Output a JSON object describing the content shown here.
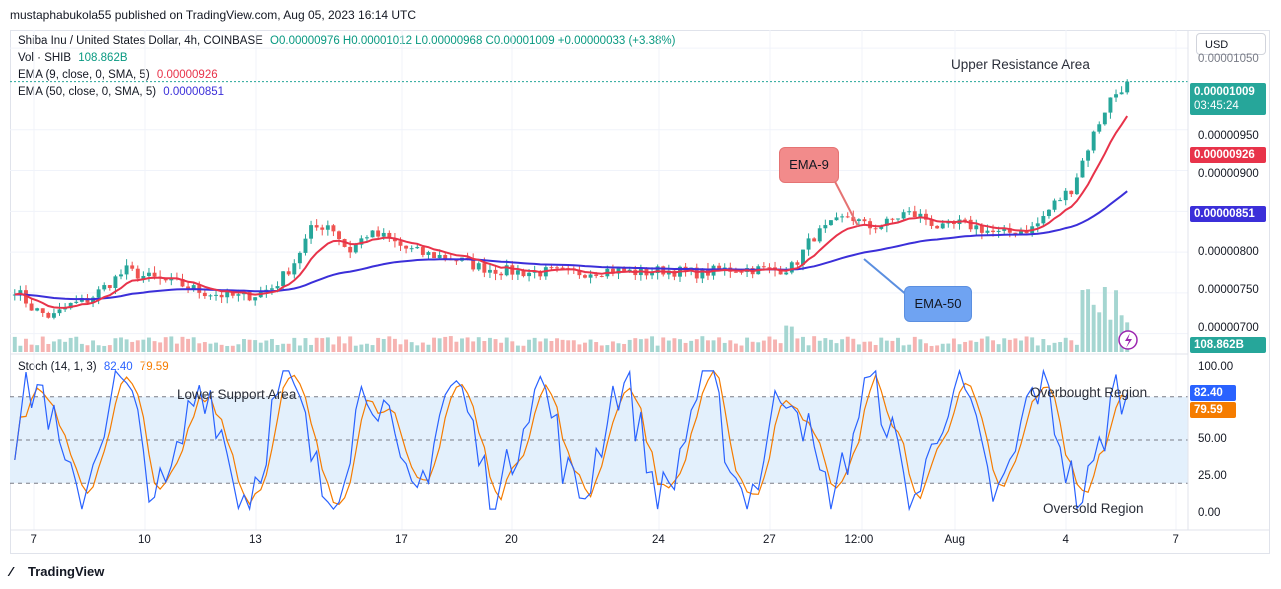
{
  "header": {
    "published_by": "mustaphabukola55 published on TradingView.com, Aug 05, 2023 16:14 UTC"
  },
  "legend": {
    "symbol_line": "Shiba Inu / United States Dollar, 4h, COINBASE",
    "ohlc": "O0.00000976 H0.00001012 L0.00000968 C0.00001009 +0.00000033 (+3.38%)",
    "vol_label": "Vol · SHIB",
    "vol_value": "108.862B",
    "ema9_label": "EMA (9, close, 0, SMA, 5)",
    "ema9_value": "0.00000926",
    "ema50_label": "EMA (50, close, 0, SMA, 5)",
    "ema50_value": "0.00000851",
    "stoch_label": "Stoch (14, 1, 3)",
    "stoch_k": "82.40",
    "stoch_d": "79.59"
  },
  "currency": "USD",
  "price_axis": {
    "labels": [
      "0.00001050",
      "0.00000950",
      "0.00000900",
      "0.00000800",
      "0.00000750",
      "0.00000700"
    ],
    "last_price": "0.00001009",
    "countdown": "03:45:24",
    "ema9_tag": "0.00000926",
    "ema50_tag": "0.00000851",
    "volume_tag": "108.862B"
  },
  "stoch_axis": {
    "labels": [
      "100.00",
      "50.00",
      "25.00",
      "0.00"
    ],
    "k_tag": "82.40",
    "d_tag": "79.59"
  },
  "time_axis": [
    "7",
    "10",
    "13",
    "17",
    "20",
    "24",
    "27",
    "12:00",
    "Aug",
    "4",
    "7"
  ],
  "annotations": {
    "upper_resistance": "Upper Resistance Area",
    "lower_support": "Lower Support Area",
    "overbought": "Overbought Region",
    "oversold": "Oversold Region",
    "ema9_callout": "EMA-9",
    "ema50_callout": "EMA-50"
  },
  "footer": {
    "brand": "TradingView"
  },
  "colors": {
    "up": "#26a69a",
    "down": "#ef5350",
    "ema9": "#e8334a",
    "ema50": "#3b2fd9",
    "stoch_k": "#2962ff",
    "stoch_d": "#f57c00",
    "last_price_tag": "#26a69a",
    "ema9_tag": "#e8334a",
    "ema50_tag": "#3b2fd9",
    "volume_tag": "#26a69a",
    "stoch_band": "#e3f0fc",
    "ema9_callout_bg": "#f28b8b",
    "ema50_callout_bg": "#6fa3f2"
  },
  "chart_data": {
    "type": "candlestick",
    "symbol": "SHIB/USD",
    "interval": "4h",
    "price_range": [
      6.8e-06,
      1.06e-05
    ],
    "last": 1.009e-05,
    "ema9_last": 9.26e-06,
    "ema50_last": 8.51e-06,
    "trend_closes": [
      7.55e-06,
      7.3e-06,
      7.2e-06,
      7.35e-06,
      7.42e-06,
      7.6e-06,
      7.78e-06,
      7.7e-06,
      7.65e-06,
      7.6e-06,
      7.52e-06,
      7.48e-06,
      7.45e-06,
      7.48e-06,
      7.58e-06,
      7.85e-06,
      8.28e-06,
      8.35e-06,
      8e-06,
      8.22e-06,
      8.18e-06,
      8.05e-06,
      7.98e-06,
      7.95e-06,
      7.9e-06,
      7.82e-06,
      7.78e-06,
      7.76e-06,
      7.75e-06,
      7.76e-06,
      7.74e-06,
      7.76e-06,
      7.78e-06,
      7.76e-06,
      7.75e-06,
      7.78e-06,
      7.76e-06,
      7.74e-06,
      7.78e-06,
      7.8e-06,
      7.79e-06,
      7.78e-06,
      7.82e-06,
      8.18e-06,
      8.32e-06,
      8.45e-06,
      8.3e-06,
      8.35e-06,
      8.48e-06,
      8.43e-06,
      8.28e-06,
      8.35e-06,
      8.3e-06,
      8.22e-06,
      8.25e-06,
      8.3e-06,
      8.58e-06,
      8.78e-06,
      9.35e-06,
      9.85e-06,
      1.009e-05
    ],
    "volume_last": "108.862B",
    "stochastic": {
      "k_last": 82.4,
      "d_last": 79.59,
      "levels": [
        20,
        50,
        80
      ],
      "range": [
        0,
        100
      ]
    }
  }
}
